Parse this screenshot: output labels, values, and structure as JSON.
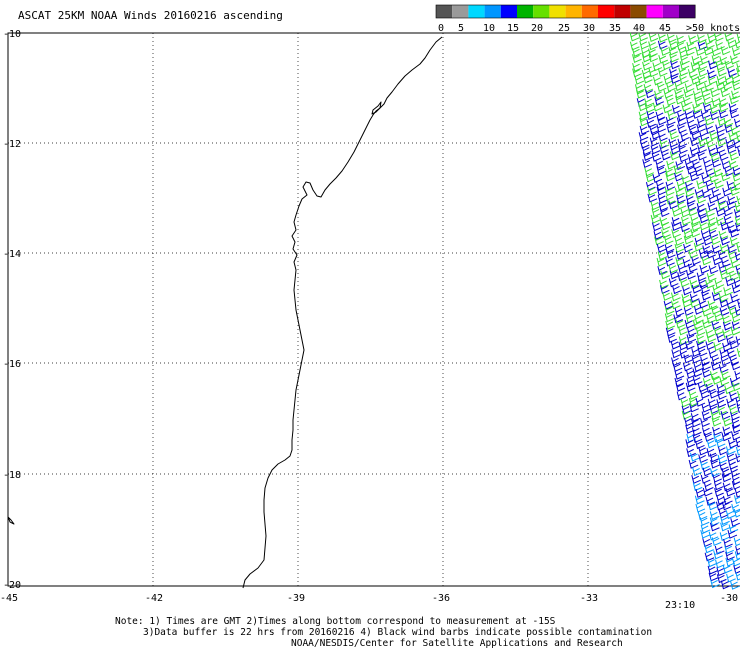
{
  "title": "ASCAT 25KM NOAA Winds 20160216 ascending",
  "legend": {
    "labels": [
      "0",
      "5",
      "10",
      "15",
      "20",
      "25",
      "30",
      "35",
      "40",
      "45",
      ">50 knots"
    ],
    "colors": [
      "#555555",
      "#9a9a9a",
      "#00d8ff",
      "#0096ff",
      "#0000ff",
      "#00b400",
      "#66e000",
      "#f0e000",
      "#ffb400",
      "#ff6a00",
      "#ff0000",
      "#c00000",
      "#8a4b00",
      "#ff00ff",
      "#a000c8",
      "#3c0064"
    ]
  },
  "axes": {
    "x_ticks": [
      "-45",
      "-42",
      "-39",
      "-36",
      "-33",
      "-30"
    ],
    "y_ticks": [
      "-10",
      "-12",
      "-14",
      "-16",
      "-18",
      "-20"
    ]
  },
  "time_label": "23:10",
  "time_color": "#a000a0",
  "notes": [
    "Note: 1) Times are GMT 2)Times along bottom correspond to measurement at -15S",
    "3)Data buffer is 22 hrs from 20160216 4) Black wind barbs indicate possible contamination",
    "NOAA/NESDIS/Center for Satellite Applications and Research"
  ],
  "wind_colors": {
    "green": "#33dd33",
    "blue": "#0000cc",
    "light_blue": "#0099ff"
  }
}
